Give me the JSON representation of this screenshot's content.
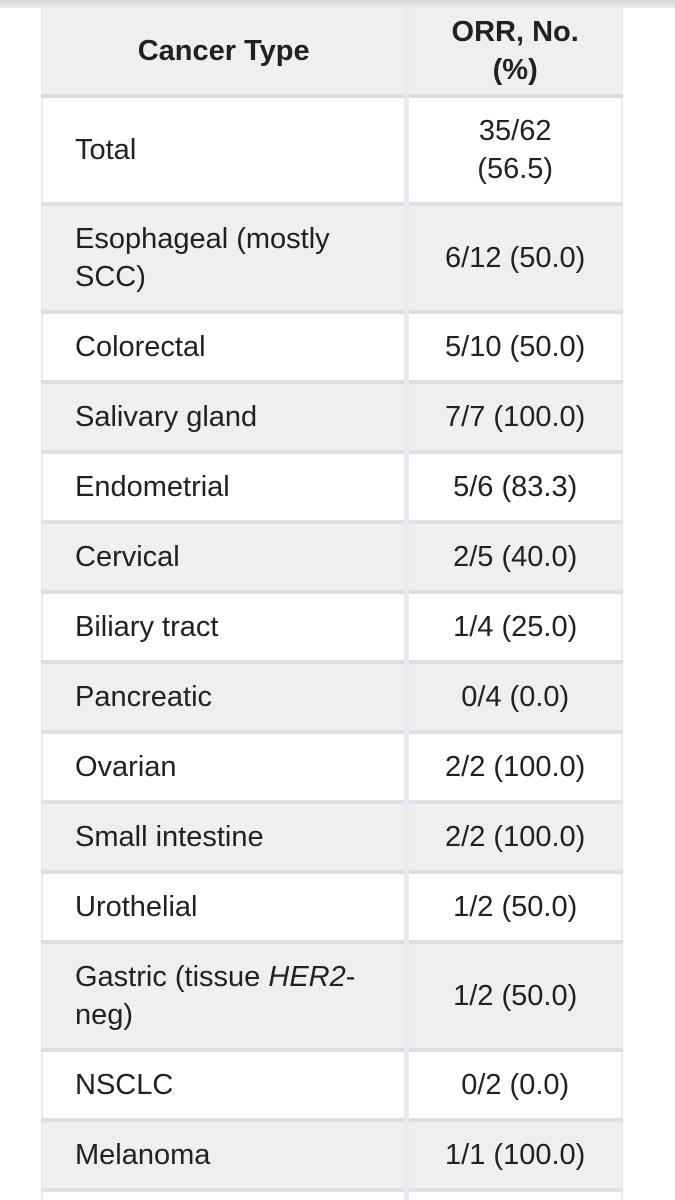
{
  "page": {
    "description": "Clinical results table of objective response rate by cancer type",
    "colors": {
      "shaded_row_bg": "#efefef",
      "white_row_bg": "#ffffff",
      "row_border": "#dce0e5",
      "header_border": "#d8dce1",
      "column_divider": "#e7eaee",
      "outer_border": "#ececec",
      "text": "#212121",
      "top_shadow": "#d7d7d7"
    }
  },
  "table": {
    "columns": [
      {
        "label": "Cancer Type"
      },
      {
        "label": "ORR, No.\n(%)"
      }
    ],
    "rows": [
      {
        "cancer_type": [
          {
            "text": "Total"
          }
        ],
        "orr": "35/62\n(56.5)"
      },
      {
        "cancer_type": [
          {
            "text": "Esophageal (mostly\nSCC)"
          }
        ],
        "orr": "6/12 (50.0)"
      },
      {
        "cancer_type": [
          {
            "text": "Colorectal"
          }
        ],
        "orr": "5/10 (50.0)"
      },
      {
        "cancer_type": [
          {
            "text": "Salivary gland"
          }
        ],
        "orr": "7/7 (100.0)"
      },
      {
        "cancer_type": [
          {
            "text": "Endometrial"
          }
        ],
        "orr": "5/6 (83.3)"
      },
      {
        "cancer_type": [
          {
            "text": "Cervical"
          }
        ],
        "orr": "2/5 (40.0)"
      },
      {
        "cancer_type": [
          {
            "text": "Biliary tract"
          }
        ],
        "orr": "1/4 (25.0)"
      },
      {
        "cancer_type": [
          {
            "text": "Pancreatic"
          }
        ],
        "orr": "0/4 (0.0)"
      },
      {
        "cancer_type": [
          {
            "text": "Ovarian"
          }
        ],
        "orr": "2/2 (100.0)"
      },
      {
        "cancer_type": [
          {
            "text": "Small intestine"
          }
        ],
        "orr": "2/2 (100.0)"
      },
      {
        "cancer_type": [
          {
            "text": "Urothelial"
          }
        ],
        "orr": "1/2 (50.0)"
      },
      {
        "cancer_type": [
          {
            "text": "Gastric (tissue "
          },
          {
            "text": "HER2",
            "italic": true
          },
          {
            "text": "-\nneg)"
          }
        ],
        "orr": "1/2 (50.0)"
      },
      {
        "cancer_type": [
          {
            "text": "NSCLC"
          }
        ],
        "orr": "0/2 (0.0)"
      },
      {
        "cancer_type": [
          {
            "text": "Melanoma"
          }
        ],
        "orr": "1/1 (100.0)"
      }
    ]
  }
}
